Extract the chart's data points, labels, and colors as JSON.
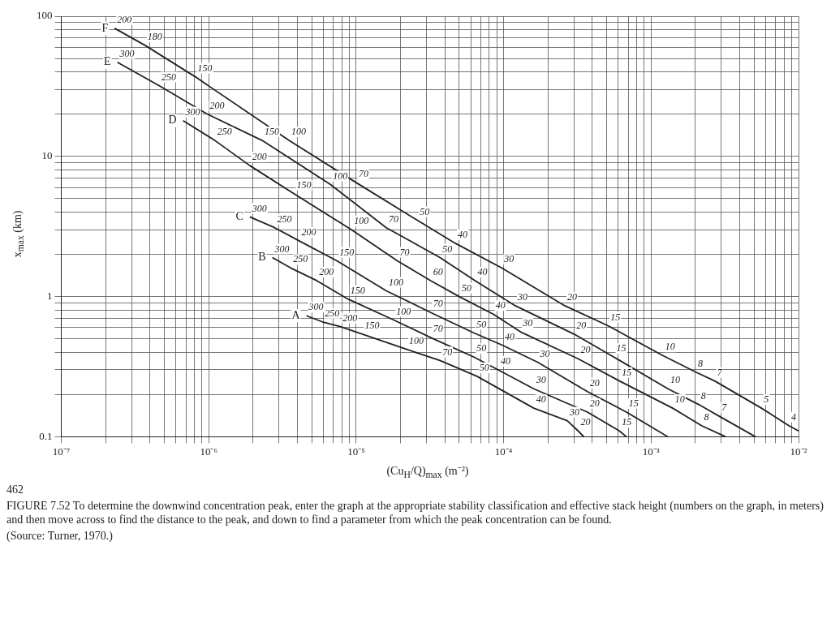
{
  "chart_data": {
    "type": "line",
    "xlabel": "(Cu$_{H}$/Q)$_{max}$ (m⁻²)",
    "ylabel": "x$_{max}$ (km)",
    "log": "xy",
    "grid": true,
    "marker": "none",
    "xlim": [
      1e-07,
      0.01
    ],
    "ylim": [
      0.1,
      100
    ],
    "xticks": [
      {
        "value": 1e-07,
        "label": "10⁻⁷"
      },
      {
        "value": 2e-07,
        "label": null
      },
      {
        "value": 3e-07,
        "label": null
      },
      {
        "value": 4e-07,
        "label": null
      },
      {
        "value": 5e-07,
        "label": null
      },
      {
        "value": 6e-07,
        "label": null
      },
      {
        "value": 7e-07,
        "label": null
      },
      {
        "value": 8e-07,
        "label": null
      },
      {
        "value": 9e-07,
        "label": null
      },
      {
        "value": 1e-06,
        "label": "10⁻⁶"
      },
      {
        "value": 2e-06,
        "label": null
      },
      {
        "value": 3e-06,
        "label": null
      },
      {
        "value": 4e-06,
        "label": null
      },
      {
        "value": 5e-06,
        "label": null
      },
      {
        "value": 6e-06,
        "label": null
      },
      {
        "value": 7e-06,
        "label": null
      },
      {
        "value": 8e-06,
        "label": null
      },
      {
        "value": 9e-06,
        "label": null
      },
      {
        "value": 1e-05,
        "label": "10⁻⁵"
      },
      {
        "value": 2e-05,
        "label": null
      },
      {
        "value": 3e-05,
        "label": null
      },
      {
        "value": 4e-05,
        "label": null
      },
      {
        "value": 5e-05,
        "label": null
      },
      {
        "value": 6e-05,
        "label": null
      },
      {
        "value": 7e-05,
        "label": null
      },
      {
        "value": 8e-05,
        "label": null
      },
      {
        "value": 9e-05,
        "label": null
      },
      {
        "value": 0.0001,
        "label": "10⁻⁴"
      },
      {
        "value": 0.0002,
        "label": null
      },
      {
        "value": 0.0003,
        "label": null
      },
      {
        "value": 0.0004,
        "label": null
      },
      {
        "value": 0.0005,
        "label": null
      },
      {
        "value": 0.0006,
        "label": null
      },
      {
        "value": 0.0007,
        "label": null
      },
      {
        "value": 0.0008,
        "label": null
      },
      {
        "value": 0.0009,
        "label": null
      },
      {
        "value": 0.001,
        "label": "10⁻³"
      },
      {
        "value": 0.002,
        "label": null
      },
      {
        "value": 0.003,
        "label": null
      },
      {
        "value": 0.004,
        "label": null
      },
      {
        "value": 0.005,
        "label": null
      },
      {
        "value": 0.006,
        "label": null
      },
      {
        "value": 0.007,
        "label": null
      },
      {
        "value": 0.008,
        "label": null
      },
      {
        "value": 0.009,
        "label": null
      },
      {
        "value": 0.01,
        "label": "10⁻²"
      }
    ],
    "yticks": [
      0.1,
      {
        "value": 0.2,
        "label": null
      },
      {
        "value": 0.3,
        "label": null
      },
      {
        "value": 0.4,
        "label": null
      },
      {
        "value": 0.5,
        "label": null
      },
      {
        "value": 0.6,
        "label": null
      },
      {
        "value": 0.7,
        "label": null
      },
      {
        "value": 0.8,
        "label": null
      },
      {
        "value": 0.9,
        "label": null
      },
      1,
      {
        "value": 2,
        "label": null
      },
      {
        "value": 3,
        "label": null
      },
      {
        "value": 4,
        "label": null
      },
      {
        "value": 5,
        "label": null
      },
      {
        "value": 6,
        "label": null
      },
      {
        "value": 7,
        "label": null
      },
      {
        "value": 8,
        "label": null
      },
      {
        "value": 9,
        "label": null
      },
      10,
      {
        "value": 20,
        "label": null
      },
      {
        "value": 30,
        "label": null
      },
      {
        "value": 40,
        "label": null
      },
      {
        "value": 50,
        "label": null
      },
      {
        "value": 60,
        "label": null
      },
      {
        "value": 70,
        "label": null
      },
      {
        "value": 80,
        "label": null
      },
      {
        "value": 90,
        "label": null
      },
      100
    ],
    "series": [
      {
        "name": "F",
        "color": "#222222",
        "x": [
          2.3e-07,
          3.7e-07,
          8.1e-07,
          3.5e-06,
          1e-05,
          2.6e-05,
          4.7e-05,
          9.7e-05,
          0.00026,
          0.00051,
          0.0012,
          0.002,
          0.0027,
          0.0056,
          0.0086,
          0.01
        ],
        "values": [
          82,
          62,
          37,
          13,
          6.5,
          3.5,
          2.4,
          1.6,
          0.86,
          0.62,
          0.38,
          0.29,
          0.25,
          0.16,
          0.12,
          0.11
        ]
      },
      {
        "name": "E",
        "color": "#222222",
        "x": [
          2.4e-07,
          4.6e-07,
          9.8e-07,
          2.3e-06,
          6.7e-06,
          1.6e-05,
          3.7e-05,
          6.4e-05,
          0.00012,
          0.0003,
          0.00056,
          0.0013,
          0.0021,
          0.0029,
          0.0051
        ],
        "values": [
          47,
          32,
          20,
          13,
          6.3,
          3.1,
          1.9,
          1.3,
          0.86,
          0.54,
          0.37,
          0.22,
          0.17,
          0.14,
          0.1
        ]
      },
      {
        "name": "D",
        "color": "#222222",
        "x": [
          6.7e-07,
          1.1e-06,
          1.9e-06,
          3.8e-06,
          9.3e-06,
          1.9e-05,
          3.2e-05,
          5e-05,
          8.5e-05,
          0.00013,
          0.00032,
          0.00061,
          0.0014,
          0.0022,
          0.0032
        ],
        "values": [
          18,
          13,
          8.6,
          5.4,
          3.0,
          1.8,
          1.3,
          1.0,
          0.75,
          0.56,
          0.36,
          0.25,
          0.16,
          0.12,
          0.1
        ]
      },
      {
        "name": "C",
        "color": "#222222",
        "x": [
          1.9e-06,
          2.8e-06,
          4.1e-06,
          7.4e-06,
          1.6e-05,
          3.2e-05,
          6.3e-05,
          9.8e-05,
          0.00017,
          0.00037,
          0.00068,
          0.0013
        ],
        "values": [
          3.7,
          3.1,
          2.5,
          1.8,
          1.1,
          0.77,
          0.55,
          0.45,
          0.34,
          0.21,
          0.15,
          0.1
        ]
      },
      {
        "name": "B",
        "color": "#222222",
        "x": [
          2.7e-06,
          3.6e-06,
          5.4e-06,
          8.8e-06,
          1.8e-05,
          3.2e-05,
          6.3e-05,
          9.2e-05,
          0.00016,
          0.00037,
          0.00061,
          0.00068
        ],
        "values": [
          1.9,
          1.6,
          1.3,
          0.96,
          0.68,
          0.51,
          0.37,
          0.3,
          0.22,
          0.15,
          0.11,
          0.1
        ]
      },
      {
        "name": "A",
        "color": "#222222",
        "x": [
          4.6e-06,
          5.9e-06,
          7.8e-06,
          1.1e-05,
          2.2e-05,
          3.7e-05,
          6.6e-05,
          0.00016,
          0.00027,
          0.00032,
          0.00035
        ],
        "values": [
          0.73,
          0.66,
          0.61,
          0.54,
          0.42,
          0.35,
          0.27,
          0.16,
          0.13,
          0.11,
          0.1
        ]
      }
    ],
    "annotations": [
      "462",
      "FIGURE 7.52 To determine the downwind concentration peak, enter the graph at the appropriate stability classification and effective stack height (numbers on the graph, in meters) and then move across to find the distance to the peak, and down to find a parameter from which the peak concentration can be found.",
      "(Source: Turner, 1970.)",
      {
        "text": "200",
        "x": 2.3e-07,
        "y": 82
      },
      {
        "text": "180",
        "x": 3.7e-07,
        "y": 62
      },
      {
        "text": "150",
        "x": 8.1e-07,
        "y": 37
      },
      {
        "text": "100",
        "x": 3.5e-06,
        "y": 13
      },
      {
        "text": "70",
        "x": 1e-05,
        "y": 6.5
      },
      {
        "text": "50",
        "x": 2.6e-05,
        "y": 3.5
      },
      {
        "text": "40",
        "x": 4.7e-05,
        "y": 2.4
      },
      {
        "text": "30",
        "x": 9.7e-05,
        "y": 1.6
      },
      {
        "text": "20",
        "x": 0.00026,
        "y": 0.86
      },
      {
        "text": "15",
        "x": 0.00051,
        "y": 0.62
      },
      {
        "text": "10",
        "x": 0.0012,
        "y": 0.38
      },
      {
        "text": "8",
        "x": 0.002,
        "y": 0.29
      },
      {
        "text": "7",
        "x": 0.0027,
        "y": 0.25
      },
      {
        "text": "5",
        "x": 0.0056,
        "y": 0.16
      },
      {
        "text": "4",
        "x": 0.0086,
        "y": 0.12
      },
      {
        "text": "300",
        "x": 2.4e-07,
        "y": 47
      },
      {
        "text": "250",
        "x": 4.6e-07,
        "y": 32
      },
      {
        "text": "200",
        "x": 9.8e-07,
        "y": 20
      },
      {
        "text": "150",
        "x": 2.3e-06,
        "y": 13
      },
      {
        "text": "100",
        "x": 6.7e-06,
        "y": 6.3
      },
      {
        "text": "70",
        "x": 1.6e-05,
        "y": 3.1
      },
      {
        "text": "50",
        "x": 3.7e-05,
        "y": 1.9
      },
      {
        "text": "40",
        "x": 6.4e-05,
        "y": 1.3
      },
      {
        "text": "30",
        "x": 0.00012,
        "y": 0.86
      },
      {
        "text": "20",
        "x": 0.0003,
        "y": 0.54
      },
      {
        "text": "15",
        "x": 0.00056,
        "y": 0.37
      },
      {
        "text": "10",
        "x": 0.0013,
        "y": 0.22
      },
      {
        "text": "8",
        "x": 0.0021,
        "y": 0.17
      },
      {
        "text": "7",
        "x": 0.0029,
        "y": 0.14
      },
      {
        "text": "300",
        "x": 6.7e-07,
        "y": 18
      },
      {
        "text": "250",
        "x": 1.1e-06,
        "y": 13
      },
      {
        "text": "200",
        "x": 1.9e-06,
        "y": 8.6
      },
      {
        "text": "150",
        "x": 3.8e-06,
        "y": 5.4
      },
      {
        "text": "100",
        "x": 9.3e-06,
        "y": 3.0
      },
      {
        "text": "70",
        "x": 1.9e-05,
        "y": 1.8
      },
      {
        "text": "60",
        "x": 3.2e-05,
        "y": 1.3
      },
      {
        "text": "50",
        "x": 5e-05,
        "y": 1.0
      },
      {
        "text": "40",
        "x": 8.5e-05,
        "y": 0.75
      },
      {
        "text": "30",
        "x": 0.00013,
        "y": 0.56
      },
      {
        "text": "20",
        "x": 0.00032,
        "y": 0.36
      },
      {
        "text": "15",
        "x": 0.00061,
        "y": 0.25
      },
      {
        "text": "10",
        "x": 0.0014,
        "y": 0.16
      },
      {
        "text": "8",
        "x": 0.0022,
        "y": 0.12
      },
      {
        "text": "300",
        "x": 1.9e-06,
        "y": 3.7
      },
      {
        "text": "250",
        "x": 2.8e-06,
        "y": 3.1
      },
      {
        "text": "200",
        "x": 4.1e-06,
        "y": 2.5
      },
      {
        "text": "150",
        "x": 7.4e-06,
        "y": 1.8
      },
      {
        "text": "100",
        "x": 1.6e-05,
        "y": 1.1
      },
      {
        "text": "70",
        "x": 3.2e-05,
        "y": 0.77
      },
      {
        "text": "50",
        "x": 6.3e-05,
        "y": 0.55
      },
      {
        "text": "40",
        "x": 9.8e-05,
        "y": 0.45
      },
      {
        "text": "30",
        "x": 0.00017,
        "y": 0.34
      },
      {
        "text": "20",
        "x": 0.00037,
        "y": 0.21
      },
      {
        "text": "15",
        "x": 0.00068,
        "y": 0.15
      },
      {
        "text": "300",
        "x": 2.7e-06,
        "y": 1.9
      },
      {
        "text": "250",
        "x": 3.6e-06,
        "y": 1.6
      },
      {
        "text": "200",
        "x": 5.4e-06,
        "y": 1.3
      },
      {
        "text": "150",
        "x": 8.8e-06,
        "y": 0.96
      },
      {
        "text": "100",
        "x": 1.8e-05,
        "y": 0.68
      },
      {
        "text": "70",
        "x": 3.2e-05,
        "y": 0.51
      },
      {
        "text": "50",
        "x": 6.3e-05,
        "y": 0.37
      },
      {
        "text": "40",
        "x": 9.2e-05,
        "y": 0.3
      },
      {
        "text": "30",
        "x": 0.00016,
        "y": 0.22
      },
      {
        "text": "20",
        "x": 0.00037,
        "y": 0.15
      },
      {
        "text": "15",
        "x": 0.00061,
        "y": 0.11
      },
      {
        "text": "300",
        "x": 4.6e-06,
        "y": 0.73
      },
      {
        "text": "250",
        "x": 5.9e-06,
        "y": 0.66
      },
      {
        "text": "200",
        "x": 7.8e-06,
        "y": 0.61
      },
      {
        "text": "150",
        "x": 1.1e-05,
        "y": 0.54
      },
      {
        "text": "100",
        "x": 2.2e-05,
        "y": 0.42
      },
      {
        "text": "70",
        "x": 3.7e-05,
        "y": 0.35
      },
      {
        "text": "50",
        "x": 6.6e-05,
        "y": 0.27
      },
      {
        "text": "40",
        "x": 0.00016,
        "y": 0.16
      },
      {
        "text": "30",
        "x": 0.00027,
        "y": 0.13
      },
      {
        "text": "20",
        "x": 0.00032,
        "y": 0.11
      }
    ]
  }
}
